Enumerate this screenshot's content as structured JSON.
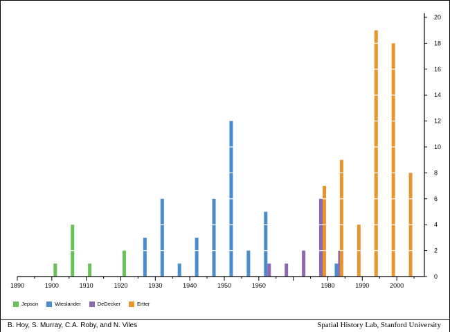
{
  "chart_data": {
    "type": "bar",
    "x_ticks": [
      1890,
      1900,
      1910,
      1920,
      1930,
      1940,
      1950,
      1960,
      1980,
      1990,
      2000
    ],
    "y_ticks": [
      0,
      2,
      4,
      6,
      8,
      10,
      12,
      14,
      16,
      18,
      20
    ],
    "ylim": [
      0,
      20
    ],
    "xlim": [
      1890,
      2008
    ],
    "series": [
      {
        "name": "Jepson",
        "color": "#6bbf59",
        "points": [
          [
            1901,
            1
          ],
          [
            1906,
            4
          ],
          [
            1911,
            1
          ],
          [
            1921,
            2
          ]
        ]
      },
      {
        "name": "Wieslander",
        "color": "#4a8ccd",
        "points": [
          [
            1927,
            3
          ],
          [
            1932,
            6
          ],
          [
            1937,
            1
          ],
          [
            1942,
            3
          ],
          [
            1947,
            6
          ],
          [
            1952,
            12
          ],
          [
            1957,
            2
          ],
          [
            1962,
            5
          ],
          [
            1982.5,
            1
          ]
        ]
      },
      {
        "name": "DeDecker",
        "color": "#8e67b3",
        "points": [
          [
            1963,
            1
          ],
          [
            1968,
            1
          ],
          [
            1973,
            2
          ],
          [
            1978,
            6
          ],
          [
            1983.5,
            2
          ]
        ]
      },
      {
        "name": "Ertter",
        "color": "#e8952e",
        "points": [
          [
            1979,
            7
          ],
          [
            1984,
            9
          ],
          [
            1989,
            4
          ],
          [
            1994,
            19
          ],
          [
            1999,
            18
          ],
          [
            2004,
            8
          ]
        ]
      }
    ],
    "legend_position": "bottom-left",
    "grid": false
  },
  "footer": {
    "authors": "B. Hoy, S. Murray, C.A. Roby, and N. Viles",
    "lab": "Spatial History Lab, Stanford University"
  }
}
